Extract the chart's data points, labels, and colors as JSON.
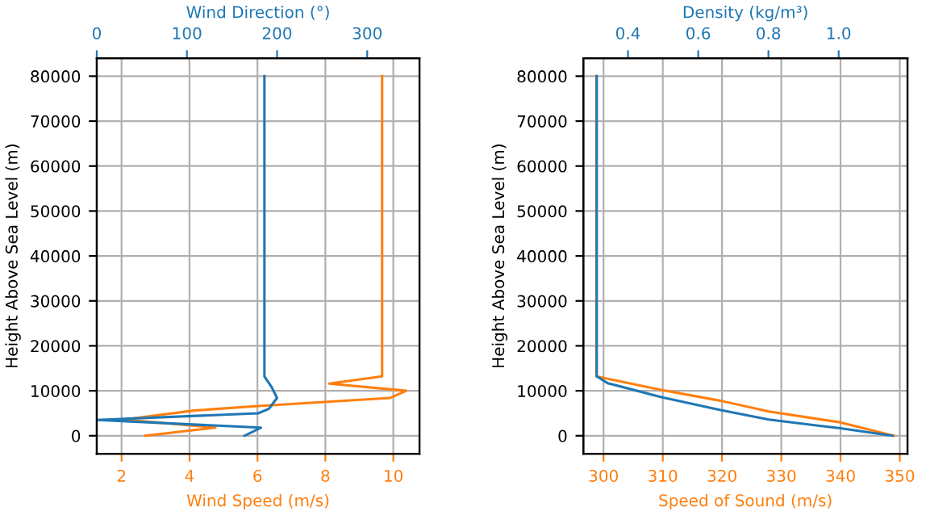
{
  "chart_data": [
    {
      "type": "line",
      "xlabel": "Wind Speed (m/s)",
      "x2label": "Wind Direction (°)",
      "ylabel": "Height Above Sea Level (m)",
      "xlim": [
        1.27,
        10.77
      ],
      "xticks": [
        2,
        4,
        6,
        8,
        10
      ],
      "x2lim": [
        0,
        358
      ],
      "x2ticks": [
        0,
        100,
        200,
        300
      ],
      "ylim": [
        -4000,
        84000
      ],
      "yticks": [
        0,
        10000,
        20000,
        30000,
        40000,
        50000,
        60000,
        70000,
        80000
      ],
      "grid": true,
      "legend": false,
      "series": [
        {
          "color": "#1f77b4",
          "axis": "x2",
          "x": [
            164,
            182,
            0,
            179,
            191,
            200,
            194,
            186,
            186
          ],
          "values": [
            0,
            1800,
            3500,
            5000,
            6000,
            8400,
            10800,
            13200,
            80000
          ]
        },
        {
          "color": "#ff7f0e",
          "x": [
            2.7,
            4.76,
            2.07,
            4.12,
            6.02,
            9.9,
            10.38,
            8.11,
            9.67,
            9.67
          ],
          "values": [
            0,
            1800,
            3600,
            5600,
            6600,
            8400,
            10000,
            11600,
            13200,
            80000
          ]
        }
      ]
    },
    {
      "type": "line",
      "xlabel": "Speed of Sound (m/s)",
      "x2label": "Density (kg/m³)",
      "ylabel": "Height Above Sea Level (m)",
      "xlim": [
        296.6,
        351.3
      ],
      "xticks": [
        300,
        310,
        320,
        330,
        340,
        350
      ],
      "x2lim": [
        0.273,
        1.196
      ],
      "x2ticks": [
        {
          "value": 0.4,
          "label": "0.4"
        },
        {
          "value": 0.6,
          "label": "0.6"
        },
        {
          "value": 0.8,
          "label": "0.8"
        },
        {
          "value": 1.0,
          "label": "1.0"
        }
      ],
      "ylim": [
        -4000,
        84000
      ],
      "yticks": [
        0,
        10000,
        20000,
        30000,
        40000,
        50000,
        60000,
        70000,
        80000
      ],
      "grid": true,
      "legend": false,
      "series": [
        {
          "color": "#ff7f0e",
          "x": [
            349,
            339.8,
            327.9,
            319.7,
            309.7,
            298.8,
            298.8
          ],
          "values": [
            0,
            3000,
            5400,
            7800,
            10200,
            13200,
            80000
          ]
        },
        {
          "color": "#1f77b4",
          "axis": "x2",
          "x": [
            1.153,
            1.0,
            0.801,
            0.664,
            0.495,
            0.342,
            0.311,
            0.311
          ],
          "values": [
            0,
            1700,
            3600,
            5700,
            8600,
            11700,
            13200,
            80000
          ]
        }
      ]
    }
  ]
}
